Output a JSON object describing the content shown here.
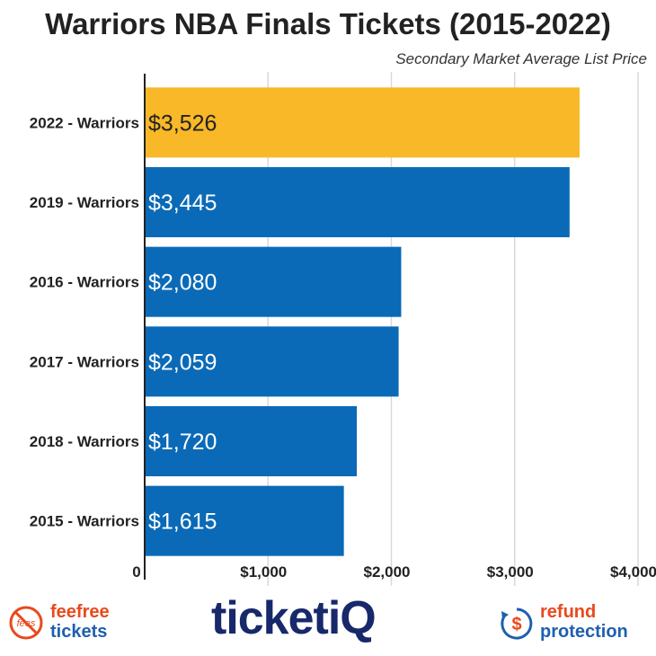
{
  "chart_data": {
    "type": "bar",
    "orientation": "horizontal",
    "title": "Warriors NBA Finals Tickets (2015-2022)",
    "subtitle": "Secondary Market Average List Price",
    "categories": [
      "2022 - Warriors",
      "2019 - Warriors",
      "2016 - Warriors",
      "2017 - Warriors",
      "2018 - Warriors",
      "2015 - Warriors"
    ],
    "values": [
      3526,
      3445,
      2080,
      2059,
      1720,
      1615
    ],
    "value_labels": [
      "$3,526",
      "$3,445",
      "$2,080",
      "$2,059",
      "$1,720",
      "$1,615"
    ],
    "bar_colors": [
      "#f8b827",
      "#0a6ab7",
      "#0a6ab7",
      "#0a6ab7",
      "#0a6ab7",
      "#0a6ab7"
    ],
    "label_colors": [
      "#222222",
      "#ffffff",
      "#ffffff",
      "#ffffff",
      "#ffffff",
      "#ffffff"
    ],
    "xlim": [
      0,
      4000
    ],
    "x_ticks": [
      0,
      1000,
      2000,
      3000,
      4000
    ],
    "x_tick_labels": [
      "0",
      "$1,000",
      "$2,000",
      "$3,000",
      "$4,000"
    ],
    "grid": true,
    "legend": "none"
  },
  "footer": {
    "feefree_badge": "fees",
    "feefree_line1": "feefree",
    "feefree_line2": "tickets",
    "brand": "ticketiQ",
    "refund_line1": "refund",
    "refund_line2": "protection"
  },
  "colors": {
    "highlight": "#f8b827",
    "primary": "#0a6ab7",
    "navy": "#17286b",
    "orange": "#e8491d"
  }
}
